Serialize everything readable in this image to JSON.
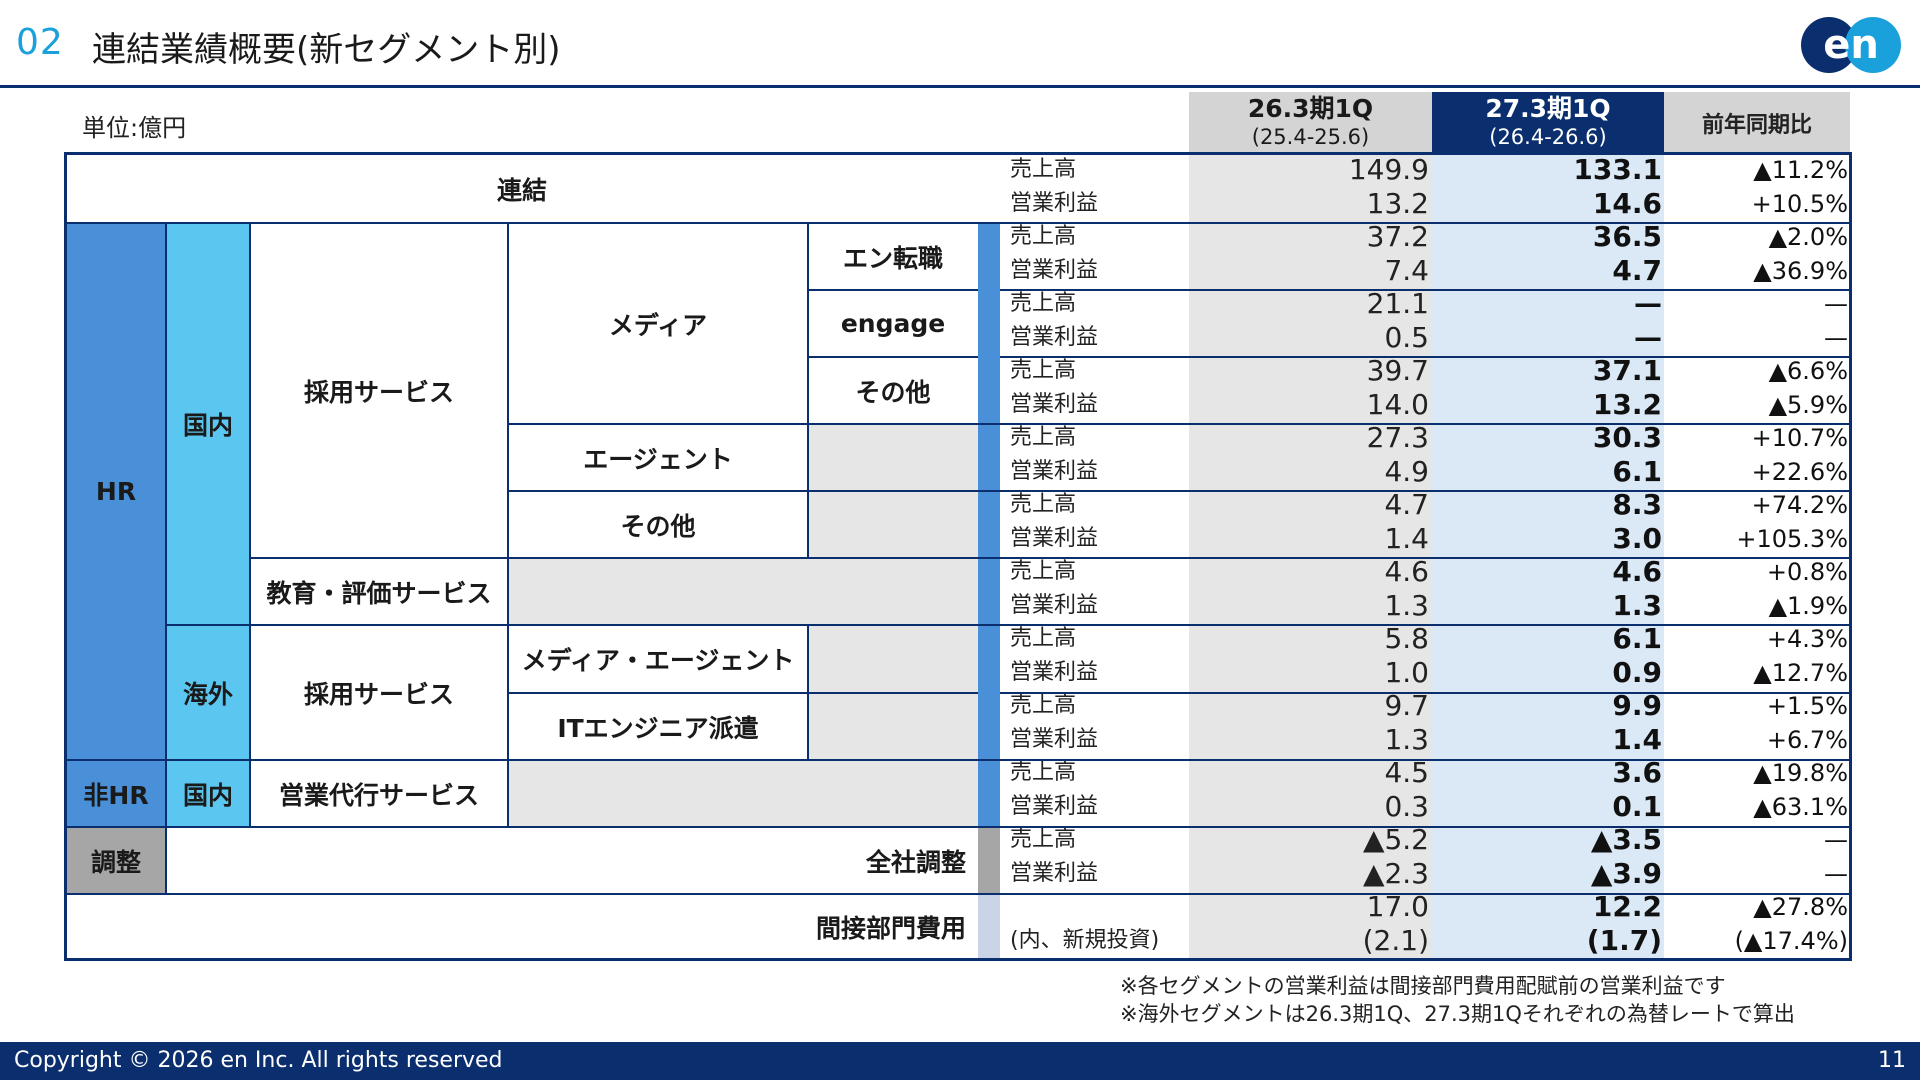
{
  "header": {
    "section_number": "02",
    "title": "連結業績概要(新セグメント別)",
    "logo_text": "en"
  },
  "unit_label": "単位:億円",
  "columns": {
    "prev": {
      "main": "26.3期1Q",
      "sub": "(25.4-25.6)"
    },
    "cur": {
      "main": "27.3期1Q",
      "sub": "(26.4-26.6)"
    },
    "yoy": "前年同期比"
  },
  "segments": {
    "consolidated": "連結",
    "hr": "HR",
    "non_hr": "非HR",
    "adjust": "調整",
    "domestic": "国内",
    "overseas": "海外",
    "domestic_nonhr": "国内",
    "recruit": "採用サービス",
    "edu": "教育・評価サービス",
    "overseas_recruit": "採用サービス",
    "sales_agency": "営業代行サービス",
    "media": "メディア",
    "agent": "エージェント",
    "other": "その他",
    "media_agent": "メディア・エージェント",
    "it_dispatch": "ITエンジニア派遣",
    "en_tenshoku": "エン転職",
    "engage": "engage",
    "media_other": "その他",
    "company_adjust": "全社調整",
    "indirect": "間接部門費用"
  },
  "metrics": {
    "sales": "売上高",
    "op": "営業利益",
    "new_invest": "(内、新規投資)"
  },
  "rows": [
    {
      "prev": "149.9",
      "cur": "133.1",
      "yoy": "▲11.2%"
    },
    {
      "prev": "13.2",
      "cur": "14.6",
      "yoy": "+10.5%"
    },
    {
      "prev": "37.2",
      "cur": "36.5",
      "yoy": "▲2.0%"
    },
    {
      "prev": "7.4",
      "cur": "4.7",
      "yoy": "▲36.9%"
    },
    {
      "prev": "21.1",
      "cur": "—",
      "yoy": "—"
    },
    {
      "prev": "0.5",
      "cur": "—",
      "yoy": "—"
    },
    {
      "prev": "39.7",
      "cur": "37.1",
      "yoy": "▲6.6%"
    },
    {
      "prev": "14.0",
      "cur": "13.2",
      "yoy": "▲5.9%"
    },
    {
      "prev": "27.3",
      "cur": "30.3",
      "yoy": "+10.7%"
    },
    {
      "prev": "4.9",
      "cur": "6.1",
      "yoy": "+22.6%"
    },
    {
      "prev": "4.7",
      "cur": "8.3",
      "yoy": "+74.2%"
    },
    {
      "prev": "1.4",
      "cur": "3.0",
      "yoy": "+105.3%"
    },
    {
      "prev": "4.6",
      "cur": "4.6",
      "yoy": "+0.8%"
    },
    {
      "prev": "1.3",
      "cur": "1.3",
      "yoy": "▲1.9%"
    },
    {
      "prev": "5.8",
      "cur": "6.1",
      "yoy": "+4.3%"
    },
    {
      "prev": "1.0",
      "cur": "0.9",
      "yoy": "▲12.7%"
    },
    {
      "prev": "9.7",
      "cur": "9.9",
      "yoy": "+1.5%"
    },
    {
      "prev": "1.3",
      "cur": "1.4",
      "yoy": "+6.7%"
    },
    {
      "prev": "4.5",
      "cur": "3.6",
      "yoy": "▲19.8%"
    },
    {
      "prev": "0.3",
      "cur": "0.1",
      "yoy": "▲63.1%"
    },
    {
      "prev": "▲5.2",
      "cur": "▲3.5",
      "yoy": "—"
    },
    {
      "prev": "▲2.3",
      "cur": "▲3.9",
      "yoy": "—"
    },
    {
      "prev": "17.0",
      "cur": "12.2",
      "yoy": "▲27.8%"
    },
    {
      "prev": "(2.1)",
      "cur": "(1.7)",
      "yoy": "(▲17.4%)"
    }
  ],
  "notes": [
    "※各セグメントの営業利益は間接部門費用配賦前の営業利益です",
    "※海外セグメントは26.3期1Q、27.3期1Qそれぞれの為替レートで算出"
  ],
  "footer": {
    "copyright": "Copyright © 2026 en Inc. All rights reserved",
    "page": "11"
  },
  "colors": {
    "navy": "#0b2f6e",
    "hr_blue": "#4a90d9",
    "domestic_cyan": "#5bc7f0",
    "indicator_blue": "#4a90d9",
    "indirect_indicator": "#c9d4e6",
    "adjust_gray": "#a6a6a6",
    "prev_col": "#e6e6e6",
    "cur_col": "#dbe9f6",
    "accent": "#1aa0db"
  }
}
